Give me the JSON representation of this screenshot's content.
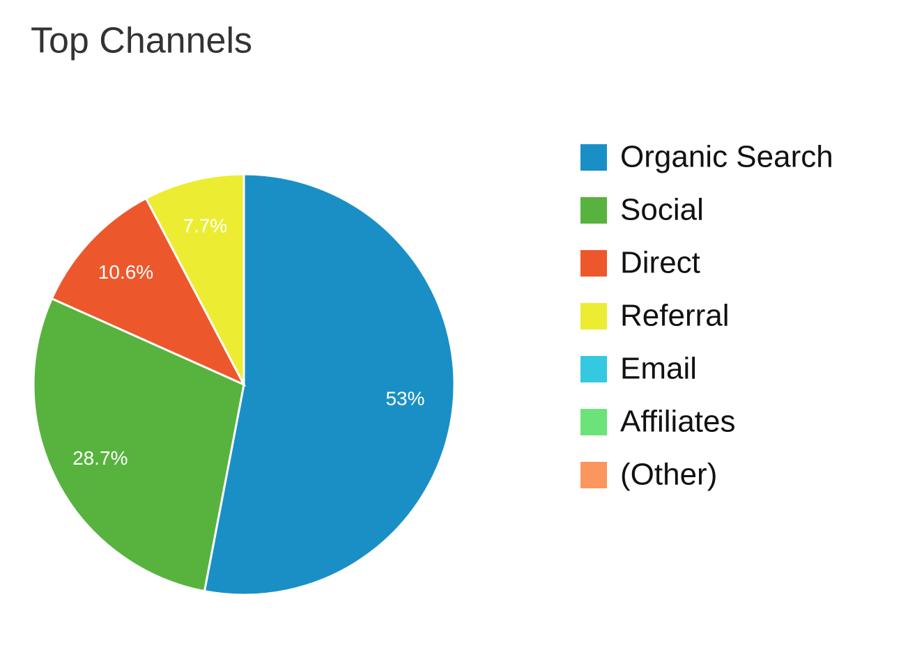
{
  "chart_data": {
    "type": "pie",
    "title": "Top Channels",
    "categories": [
      "Organic Search",
      "Social",
      "Direct",
      "Referral",
      "Email",
      "Affiliates",
      "(Other)"
    ],
    "values": [
      53,
      28.7,
      10.6,
      7.7,
      0,
      0,
      0
    ],
    "value_labels": [
      "53%",
      "28.7%",
      "10.6%",
      "7.7%",
      null,
      null,
      null
    ],
    "colors": [
      "#1a8fc6",
      "#57b33e",
      "#ec582c",
      "#ecec33",
      "#34c9e0",
      "#6be378",
      "#fb965e"
    ],
    "legend": "right"
  }
}
